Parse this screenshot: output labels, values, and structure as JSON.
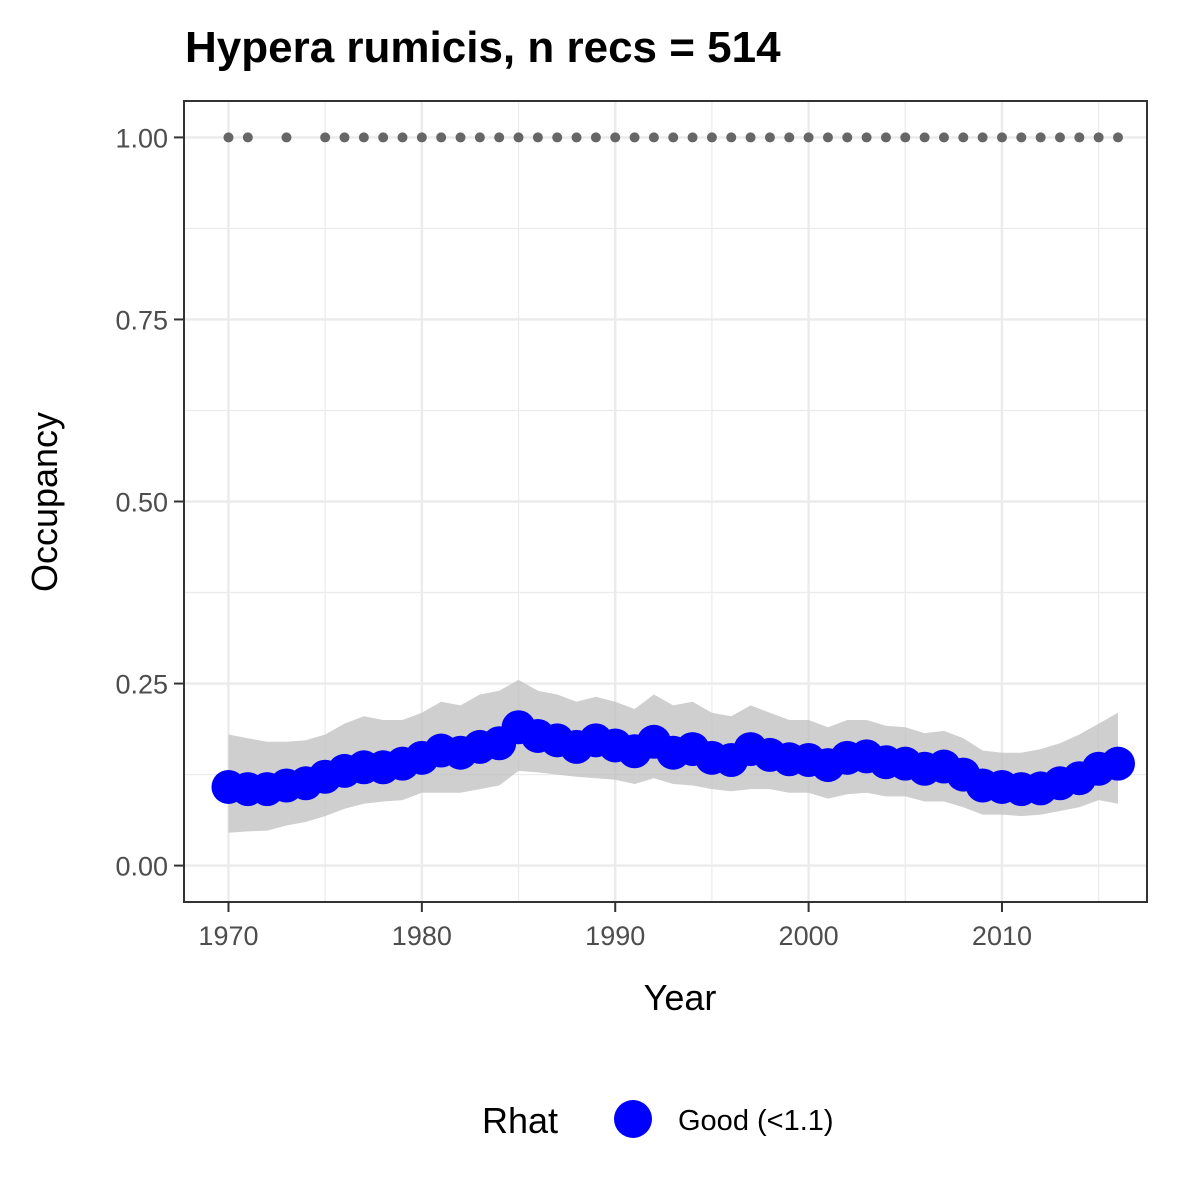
{
  "chart_data": {
    "type": "line",
    "title": "Hypera rumicis, n recs = 514",
    "xlabel": "Year",
    "ylabel": "Occupancy",
    "xlim": [
      1967.7,
      2017.5
    ],
    "ylim": [
      -0.05,
      1.05
    ],
    "x_ticks": [
      1970,
      1980,
      1990,
      2000,
      2010
    ],
    "x_tick_labels": [
      "1970",
      "1980",
      "1990",
      "2000",
      "2010"
    ],
    "y_ticks": [
      0,
      0.25,
      0.5,
      0.75,
      1.0
    ],
    "y_tick_labels": [
      "0.00",
      "0.25",
      "0.50",
      "0.75",
      "1.00"
    ],
    "grid": true,
    "legend_position": "bottom",
    "legend": {
      "title": "Rhat",
      "label": "Good (<1.1)"
    },
    "colors": {
      "series": "#0000ff",
      "ribbon": "#bfbfbf",
      "records": "#666666",
      "grid": "#ebebeb",
      "frame": "#333333"
    },
    "series": [
      {
        "name": "Good (<1.1)",
        "x": [
          1970,
          1971,
          1972,
          1973,
          1974,
          1975,
          1976,
          1977,
          1978,
          1979,
          1980,
          1981,
          1982,
          1983,
          1984,
          1985,
          1986,
          1987,
          1988,
          1989,
          1990,
          1991,
          1992,
          1993,
          1994,
          1995,
          1996,
          1997,
          1998,
          1999,
          2000,
          2001,
          2002,
          2003,
          2004,
          2005,
          2006,
          2007,
          2008,
          2009,
          2010,
          2011,
          2012,
          2013,
          2014,
          2015,
          2016
        ],
        "y": [
          0.108,
          0.105,
          0.105,
          0.11,
          0.113,
          0.122,
          0.13,
          0.135,
          0.135,
          0.14,
          0.148,
          0.158,
          0.155,
          0.163,
          0.168,
          0.19,
          0.178,
          0.172,
          0.163,
          0.172,
          0.165,
          0.157,
          0.17,
          0.155,
          0.16,
          0.148,
          0.145,
          0.16,
          0.152,
          0.146,
          0.145,
          0.138,
          0.148,
          0.15,
          0.142,
          0.14,
          0.133,
          0.136,
          0.125,
          0.11,
          0.108,
          0.105,
          0.106,
          0.113,
          0.12,
          0.133,
          0.14
        ],
        "lower": [
          0.045,
          0.047,
          0.048,
          0.055,
          0.06,
          0.068,
          0.078,
          0.085,
          0.088,
          0.09,
          0.1,
          0.1,
          0.1,
          0.105,
          0.11,
          0.13,
          0.128,
          0.125,
          0.122,
          0.12,
          0.118,
          0.112,
          0.12,
          0.112,
          0.11,
          0.105,
          0.102,
          0.105,
          0.105,
          0.1,
          0.1,
          0.092,
          0.098,
          0.1,
          0.095,
          0.095,
          0.088,
          0.088,
          0.08,
          0.07,
          0.07,
          0.068,
          0.07,
          0.075,
          0.08,
          0.09,
          0.085
        ],
        "upper": [
          0.18,
          0.175,
          0.17,
          0.17,
          0.172,
          0.18,
          0.195,
          0.205,
          0.2,
          0.2,
          0.21,
          0.225,
          0.22,
          0.235,
          0.24,
          0.255,
          0.24,
          0.235,
          0.225,
          0.232,
          0.225,
          0.215,
          0.235,
          0.22,
          0.225,
          0.21,
          0.205,
          0.22,
          0.21,
          0.2,
          0.2,
          0.19,
          0.2,
          0.2,
          0.192,
          0.19,
          0.182,
          0.185,
          0.175,
          0.158,
          0.155,
          0.155,
          0.16,
          0.168,
          0.18,
          0.195,
          0.21
        ]
      }
    ],
    "records": {
      "name": "records",
      "x": [
        1970,
        1971,
        1973,
        1975,
        1976,
        1977,
        1978,
        1979,
        1980,
        1981,
        1982,
        1983,
        1984,
        1985,
        1986,
        1987,
        1988,
        1989,
        1990,
        1991,
        1992,
        1993,
        1994,
        1995,
        1996,
        1997,
        1998,
        1999,
        2000,
        2001,
        2002,
        2003,
        2004,
        2005,
        2006,
        2007,
        2008,
        2009,
        2010,
        2011,
        2012,
        2013,
        2014,
        2015,
        2016
      ],
      "y": 1.0
    }
  }
}
